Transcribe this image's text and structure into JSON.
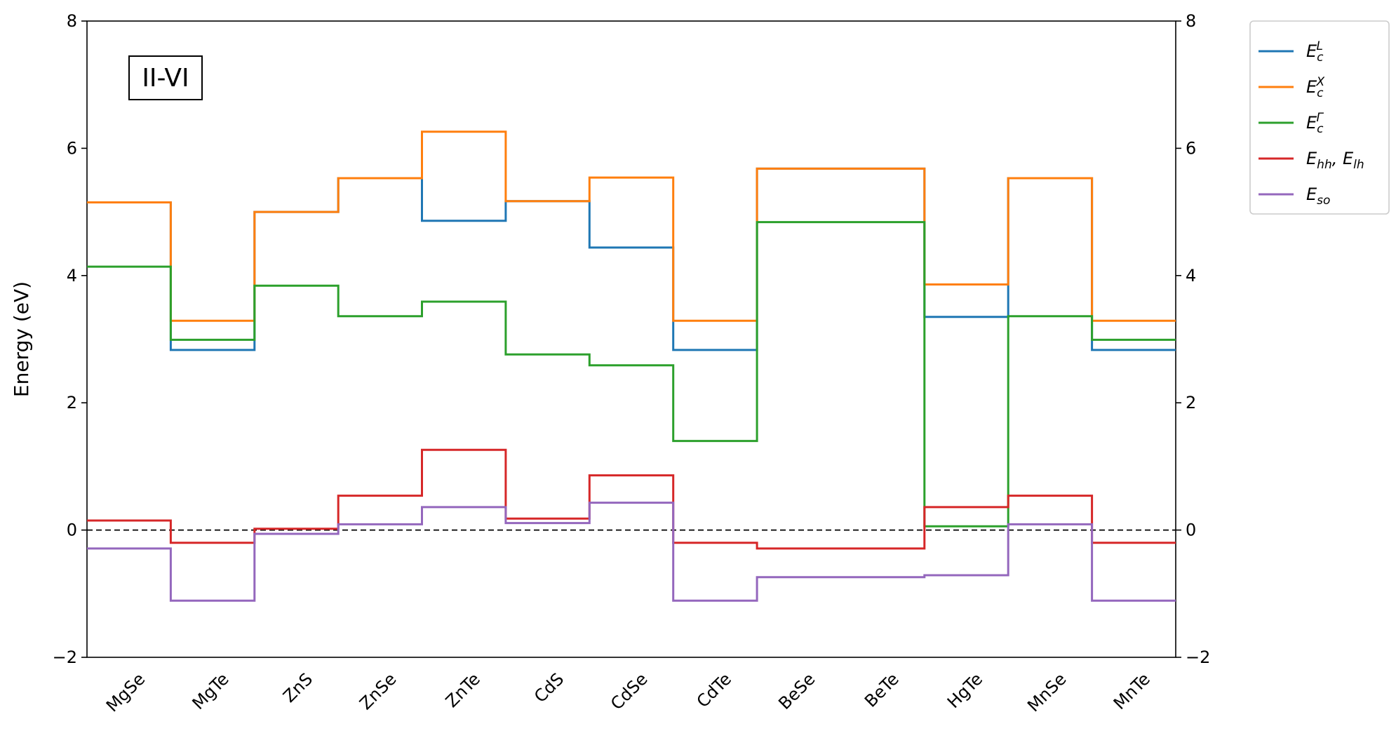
{
  "chart_data": {
    "type": "line",
    "step": true,
    "title": "",
    "annotation": "II-VI",
    "ylabel": "Energy (eV)",
    "xlabel": "",
    "ylim": [
      -2,
      8
    ],
    "yticks": [
      "−2",
      "0",
      "2",
      "4",
      "6",
      "8"
    ],
    "ytick_values": [
      -2,
      0,
      2,
      4,
      6,
      8
    ],
    "categories": [
      "MgSe",
      "MgTe",
      "ZnS",
      "ZnSe",
      "ZnTe",
      "CdS",
      "CdSe",
      "CdTe",
      "BeSe",
      "BeTe",
      "HgTe",
      "MnSe",
      "MnTe"
    ],
    "reference_line": {
      "y": 0,
      "style": "dashed"
    },
    "grid": false,
    "legend_position": "outside-top-right",
    "series": [
      {
        "name": "E_c^L",
        "label_main": "E",
        "label_sub": "c",
        "label_sup": "L",
        "color": "#1f77b4",
        "values": [
          5.15,
          2.83,
          5.0,
          5.53,
          4.86,
          5.17,
          4.44,
          2.83,
          5.68,
          5.68,
          3.35,
          5.53,
          2.83
        ]
      },
      {
        "name": "E_c^X",
        "label_main": "E",
        "label_sub": "c",
        "label_sup": "X",
        "color": "#ff7f0e",
        "values": [
          5.15,
          3.29,
          5.0,
          5.53,
          6.26,
          5.17,
          5.54,
          3.29,
          5.68,
          5.68,
          3.86,
          5.53,
          3.29
        ]
      },
      {
        "name": "E_c^Γ",
        "label_main": "E",
        "label_sub": "c",
        "label_sup": "Γ",
        "color": "#2ca02c",
        "values": [
          4.14,
          2.99,
          3.84,
          3.36,
          3.59,
          2.76,
          2.59,
          1.4,
          4.84,
          4.84,
          0.06,
          3.36,
          2.99
        ]
      },
      {
        "name": "E_hh, E_lh",
        "label_parts": [
          {
            "main": "E",
            "sub": "hh"
          },
          {
            "main": ", E",
            "sub": "lh"
          }
        ],
        "color": "#d62728",
        "values": [
          0.15,
          -0.2,
          0.02,
          0.54,
          1.26,
          0.18,
          0.86,
          -0.2,
          -0.29,
          -0.29,
          0.36,
          0.54,
          -0.2
        ]
      },
      {
        "name": "E_so",
        "label_main": "E",
        "label_sub": "so",
        "label_sup": "",
        "color": "#9467bd",
        "values": [
          -0.29,
          -1.11,
          -0.06,
          0.09,
          0.36,
          0.11,
          0.43,
          -1.11,
          -0.74,
          -0.74,
          -0.71,
          0.09,
          -1.11
        ]
      }
    ]
  }
}
